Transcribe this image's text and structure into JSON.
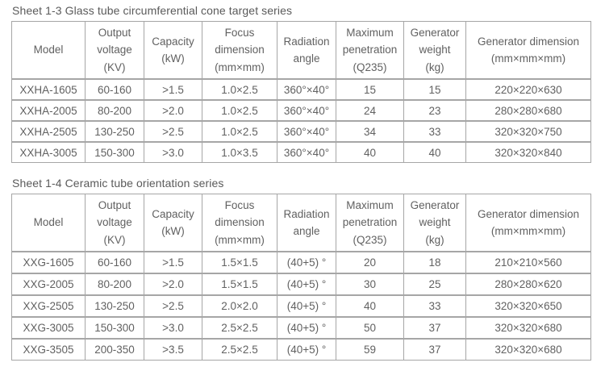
{
  "colors": {
    "background": "#ffffff",
    "border": "#a6a6a6",
    "text": "#616161",
    "title_text": "#5a5a5a"
  },
  "tables": [
    {
      "title": "Sheet 1-3 Glass tube circumferential cone target series",
      "headers": [
        "Model",
        "Output\nvoltage\n(KV)",
        "Capacity\n(kW)",
        "Focus\ndimension\n(mm×mm)",
        "Radiation\nangle",
        "Maximum\npenetration\n(Q235)",
        "Generator\nweight\n(kg)",
        "Generator dimension\n(mm×mm×mm)"
      ],
      "rows": [
        [
          "XXHA-1605",
          "60-160",
          ">1.5",
          "1.0×2.5",
          "360°×40°",
          "15",
          "15",
          "220×220×630"
        ],
        [
          "XXHA-2005",
          "80-200",
          ">2.0",
          "1.0×2.5",
          "360°×40°",
          "24",
          "23",
          "280×280×680"
        ],
        [
          "XXHA-2505",
          "130-250",
          ">2.5",
          "1.0×2.5",
          "360°×40°",
          "34",
          "33",
          "320×320×750"
        ],
        [
          "XXHA-3005",
          "150-300",
          ">3.0",
          "1.0×3.5",
          "360°×40°",
          "40",
          "40",
          "320×320×840"
        ]
      ]
    },
    {
      "title": "Sheet 1-4 Ceramic tube orientation series",
      "headers": [
        "Model",
        "Output\nvoltage\n(KV)",
        "Capacity\n(kW)",
        "Focus\ndimension\n(mm×mm)",
        "Radiation\nangle",
        "Maximum\npenetration\n(Q235)",
        "Generator\nweight\n(kg)",
        "Generator dimension\n(mm×mm×mm)"
      ],
      "rows": [
        [
          "XXG-1605",
          "60-160",
          ">1.5",
          "1.5×1.5",
          "(40+5) °",
          "20",
          "18",
          "210×210×560"
        ],
        [
          "XXG-2005",
          "80-200",
          ">2.0",
          "1.5×1.5",
          "(40+5) °",
          "30",
          "25",
          "280×280×620"
        ],
        [
          "XXG-2505",
          "130-250",
          ">2.5",
          "2.0×2.0",
          "(40+5) °",
          "40",
          "33",
          "320×320×650"
        ],
        [
          "XXG-3005",
          "150-300",
          ">3.0",
          "2.5×2.5",
          "(40+5) °",
          "50",
          "37",
          "320×320×680"
        ],
        [
          "XXG-3505",
          "200-350",
          ">3.5",
          "2.5×2.5",
          "(40+5) °",
          "59",
          "37",
          "320×320×680"
        ]
      ]
    }
  ]
}
